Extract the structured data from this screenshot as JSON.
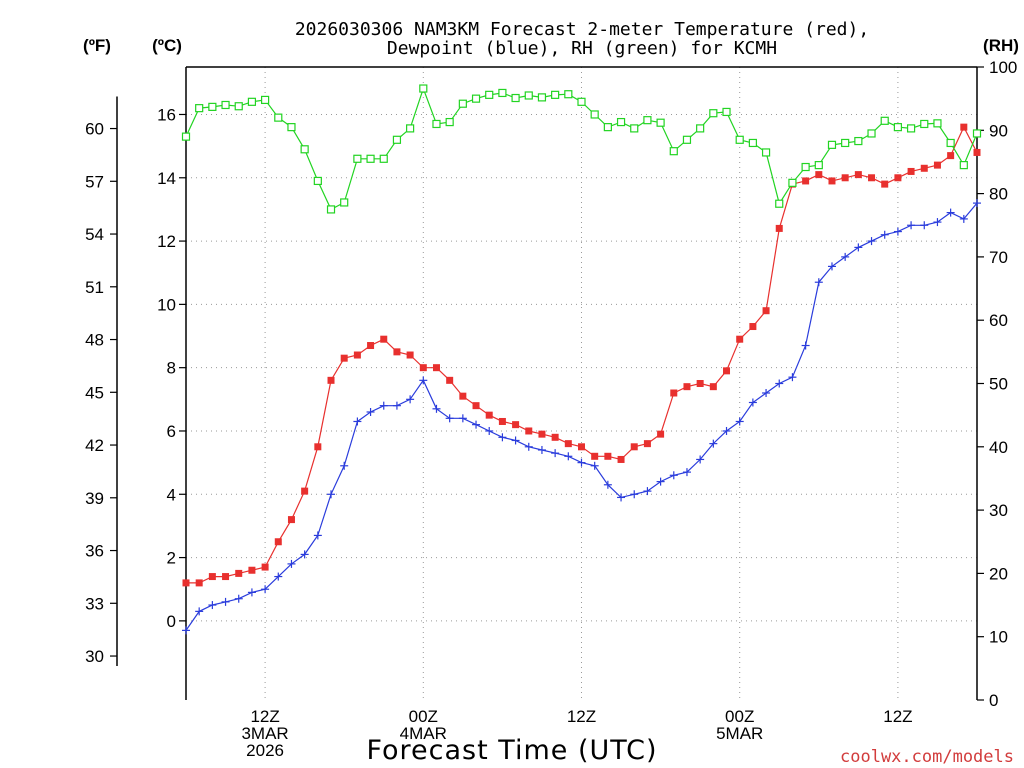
{
  "chart_data": {
    "type": "line",
    "title_lines": [
      "2026030306 NAM3KM Forecast 2-meter Temperature (red),",
      "Dewpoint (blue), RH (green) for KCMH"
    ],
    "xlabel": "Forecast Time (UTC)",
    "watermark": "coolwx.com/models",
    "left_axis_c": {
      "unit": "(ºC)",
      "range": [
        -2.5,
        17.5
      ],
      "ticks": [
        "0",
        "2",
        "4",
        "6",
        "8",
        "10",
        "12",
        "14",
        "16"
      ]
    },
    "left_axis_f": {
      "unit": "(ºF)",
      "ticks": [
        "30",
        "33",
        "36",
        "39",
        "42",
        "45",
        "48",
        "51",
        "54",
        "57",
        "60"
      ]
    },
    "right_axis_rh": {
      "unit": "(RH)",
      "range": [
        0,
        100
      ],
      "ticks": [
        "0",
        "10",
        "20",
        "30",
        "40",
        "50",
        "60",
        "70",
        "80",
        "90",
        "100"
      ]
    },
    "x_range_hours": [
      0,
      60
    ],
    "x_ticks": [
      {
        "hour": 6,
        "lines": [
          "12Z",
          "3MAR",
          "2026"
        ]
      },
      {
        "hour": 18,
        "lines": [
          "00Z",
          "4MAR"
        ]
      },
      {
        "hour": 30,
        "lines": [
          "12Z"
        ]
      },
      {
        "hour": 42,
        "lines": [
          "00Z",
          "5MAR"
        ]
      },
      {
        "hour": 54,
        "lines": [
          "12Z"
        ]
      }
    ],
    "series": [
      {
        "name": "2-meter Temperature",
        "color": "#e8302e",
        "marker": "filled-square",
        "axis": "celsius",
        "x": [
          0,
          1,
          2,
          3,
          4,
          5,
          6,
          7,
          8,
          9,
          10,
          11,
          12,
          13,
          14,
          15,
          16,
          17,
          18,
          19,
          20,
          21,
          22,
          23,
          24,
          25,
          26,
          27,
          28,
          29,
          30,
          31,
          32,
          33,
          34,
          35,
          36,
          37,
          38,
          39,
          40,
          41,
          42,
          43,
          44,
          45,
          46,
          47,
          48,
          49,
          50,
          51,
          52,
          53,
          54,
          55,
          56,
          57,
          58,
          59,
          60
        ],
        "values": [
          1.2,
          1.2,
          1.4,
          1.4,
          1.5,
          1.6,
          1.7,
          2.5,
          3.2,
          4.1,
          5.5,
          7.6,
          8.3,
          8.4,
          8.7,
          8.9,
          8.5,
          8.4,
          8.0,
          8.0,
          7.6,
          7.1,
          6.8,
          6.5,
          6.3,
          6.2,
          6.0,
          5.9,
          5.8,
          5.6,
          5.5,
          5.2,
          5.2,
          5.1,
          5.5,
          5.6,
          5.9,
          7.2,
          7.4,
          7.5,
          7.4,
          7.9,
          8.9,
          9.3,
          9.8,
          12.4,
          13.8,
          13.9,
          14.1,
          13.9,
          14.0,
          14.1,
          14.0,
          13.8,
          14.0,
          14.2,
          14.3,
          14.4,
          14.7,
          15.6,
          14.8
        ]
      },
      {
        "name": "Dewpoint",
        "color": "#2a3cdc",
        "marker": "plus",
        "axis": "celsius",
        "x": [
          0,
          1,
          2,
          3,
          4,
          5,
          6,
          7,
          8,
          9,
          10,
          11,
          12,
          13,
          14,
          15,
          16,
          17,
          18,
          19,
          20,
          21,
          22,
          23,
          24,
          25,
          26,
          27,
          28,
          29,
          30,
          31,
          32,
          33,
          34,
          35,
          36,
          37,
          38,
          39,
          40,
          41,
          42,
          43,
          44,
          45,
          46,
          47,
          48,
          49,
          50,
          51,
          52,
          53,
          54,
          55,
          56,
          57,
          58,
          59,
          60
        ],
        "values": [
          -0.3,
          0.3,
          0.5,
          0.6,
          0.7,
          0.9,
          1.0,
          1.4,
          1.8,
          2.1,
          2.7,
          4.0,
          4.9,
          6.3,
          6.6,
          6.8,
          6.8,
          7.0,
          7.6,
          6.7,
          6.4,
          6.4,
          6.2,
          6.0,
          5.8,
          5.7,
          5.5,
          5.4,
          5.3,
          5.2,
          5.0,
          4.9,
          4.3,
          3.9,
          4.0,
          4.1,
          4.4,
          4.6,
          4.7,
          5.1,
          5.6,
          6.0,
          6.3,
          6.9,
          7.2,
          7.5,
          7.7,
          8.7,
          10.7,
          11.2,
          11.5,
          11.8,
          12.0,
          12.2,
          12.3,
          12.5,
          12.5,
          12.6,
          12.9,
          12.7,
          13.2
        ]
      },
      {
        "name": "RH",
        "color": "#22d422",
        "marker": "open-square",
        "axis": "rh",
        "x": [
          0,
          1,
          2,
          3,
          4,
          5,
          6,
          7,
          8,
          9,
          10,
          11,
          12,
          13,
          14,
          15,
          16,
          17,
          18,
          19,
          20,
          21,
          22,
          23,
          24,
          25,
          26,
          27,
          28,
          29,
          30,
          31,
          32,
          33,
          34,
          35,
          36,
          37,
          38,
          39,
          40,
          41,
          42,
          43,
          44,
          45,
          46,
          47,
          48,
          49,
          50,
          51,
          52,
          53,
          54,
          55,
          56,
          57,
          58,
          59,
          60
        ],
        "values": [
          89,
          93.5,
          93.7,
          94,
          93.8,
          94.5,
          94.8,
          92,
          90.5,
          87,
          82,
          77.5,
          78.6,
          85.5,
          85.5,
          85.5,
          88.5,
          90.3,
          96.6,
          91,
          91.3,
          94.2,
          95,
          95.6,
          95.9,
          95.1,
          95.5,
          95.2,
          95.6,
          95.7,
          94.5,
          92.5,
          90.5,
          91.3,
          90.3,
          91.6,
          91.2,
          86.7,
          88.5,
          90.3,
          92.7,
          92.9,
          88.5,
          88,
          86.5,
          78.4,
          81.7,
          84.2,
          84.5,
          87.7,
          88,
          88.3,
          89.5,
          91.5,
          90.5,
          90.3,
          91,
          91.1,
          88,
          84.5,
          89.5
        ]
      }
    ]
  }
}
